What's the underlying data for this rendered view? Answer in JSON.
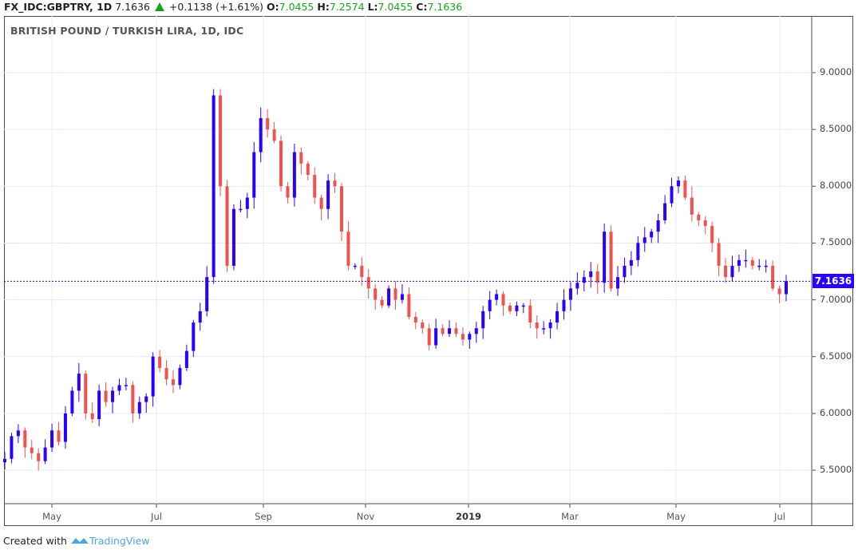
{
  "header": {
    "symbol": "FX_IDC:GBPTRY, 1D",
    "last": "7.1636",
    "change": "+0.1138 (+1.61%)",
    "o_label": "O:",
    "o": "7.0455",
    "h_label": "H:",
    "h": "7.2574",
    "l_label": "L:",
    "l": "7.0455",
    "c_label": "C:",
    "c": "7.1636"
  },
  "footer": {
    "created": "Created with",
    "brand": "TradingView"
  },
  "colors": {
    "up": "#2a00ff",
    "down": "#ef5350",
    "grid": "#e1ecf2",
    "last_line": "#2a00ff"
  },
  "chart_data": {
    "type": "candlestick",
    "title": "BRITISH POUND / TURKISH LIRA, 1D, IDC",
    "ylim": [
      5.18,
      9.5
    ],
    "y_ticks": [
      "5.5000",
      "6.0000",
      "6.5000",
      "7.0000",
      "7.5000",
      "8.0000",
      "8.5000",
      "9.0000"
    ],
    "x_ticks": [
      "May",
      "Jul",
      "Sep",
      "Nov",
      "2019",
      "Mar",
      "May",
      "Jul"
    ],
    "last_price": 7.1636,
    "last_price_label": "7.1636",
    "closes": [
      5.6,
      5.8,
      5.85,
      5.7,
      5.65,
      5.58,
      5.7,
      5.85,
      5.75,
      6.0,
      6.2,
      6.35,
      6.0,
      5.95,
      6.2,
      6.1,
      6.2,
      6.25,
      6.25,
      6.0,
      6.1,
      6.15,
      6.5,
      6.4,
      6.3,
      6.25,
      6.4,
      6.55,
      6.8,
      6.9,
      7.2,
      8.8,
      8.0,
      7.3,
      7.8,
      7.8,
      7.9,
      8.3,
      8.6,
      8.5,
      8.4,
      8.0,
      7.9,
      8.3,
      8.2,
      8.1,
      7.9,
      7.8,
      8.05,
      8.0,
      7.6,
      7.3,
      7.3,
      7.2,
      7.1,
      7.0,
      6.95,
      7.1,
      7.0,
      7.05,
      6.85,
      6.8,
      6.75,
      6.6,
      6.75,
      6.7,
      6.75,
      6.7,
      6.65,
      6.7,
      6.75,
      6.9,
      7.0,
      7.05,
      6.95,
      6.9,
      6.95,
      6.95,
      6.8,
      6.75,
      6.75,
      6.8,
      6.9,
      7.0,
      7.1,
      7.15,
      7.2,
      7.25,
      7.15,
      7.6,
      7.1,
      7.2,
      7.3,
      7.35,
      7.5,
      7.55,
      7.6,
      7.7,
      7.85,
      8.0,
      8.05,
      7.9,
      7.75,
      7.7,
      7.65,
      7.5,
      7.3,
      7.2,
      7.3,
      7.35,
      7.35,
      7.3,
      7.3,
      7.3,
      7.1,
      7.05,
      7.1636
    ]
  }
}
